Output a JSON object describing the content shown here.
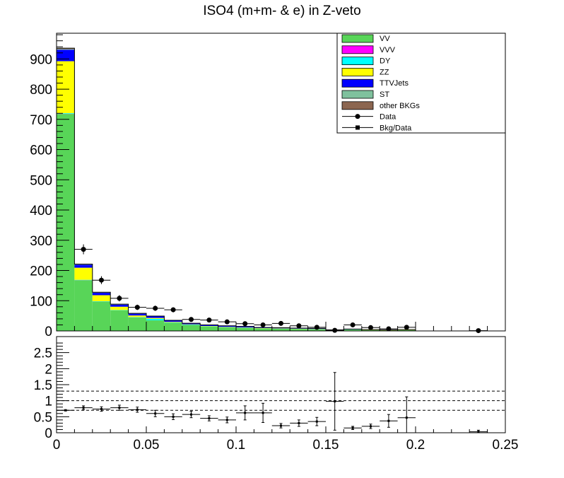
{
  "title": "ISO4 (m+m- & e) in Z-veto",
  "chart_data": [
    {
      "type": "bar",
      "panel": "main",
      "stacked": true,
      "title": "ISO4 (m+m- & e) in Z-veto",
      "x_bin_width": 0.01,
      "x_bin_starts": [
        0.0,
        0.01,
        0.02,
        0.03,
        0.04,
        0.05,
        0.06,
        0.07,
        0.08,
        0.09,
        0.1,
        0.11,
        0.12,
        0.13,
        0.14,
        0.15,
        0.16,
        0.17,
        0.18,
        0.19,
        0.2,
        0.21,
        0.22,
        0.23,
        0.24
      ],
      "xlim": [
        0,
        0.25
      ],
      "ylim": [
        0,
        985
      ],
      "x_ticks": [
        "0",
        "0.05",
        "0.1",
        "0.15",
        "0.2",
        "0.25"
      ],
      "y_ticks": [
        "0",
        "100",
        "200",
        "300",
        "400",
        "500",
        "600",
        "700",
        "800",
        "900"
      ],
      "series": [
        {
          "name": "VV",
          "color": "#58d558",
          "values": [
            718,
            168,
            97,
            68,
            45,
            35,
            27,
            20,
            15,
            12,
            10,
            8,
            7,
            6,
            5,
            2,
            4,
            3,
            2,
            3,
            0,
            0,
            0,
            0,
            0
          ]
        },
        {
          "name": "VVV",
          "color": "#ff00ff",
          "values": [
            0.5,
            0.2,
            0.2,
            0.1,
            0.1,
            0,
            0,
            0,
            0,
            0,
            0,
            0,
            0,
            0,
            0,
            0,
            0,
            0,
            0,
            0,
            0,
            0,
            0,
            0,
            0
          ]
        },
        {
          "name": "DY",
          "color": "#00ffff",
          "values": [
            2,
            1,
            1,
            1,
            1,
            5,
            1,
            1,
            0.5,
            0.5,
            0.5,
            0.5,
            0.5,
            0.5,
            0.5,
            0,
            0.5,
            0,
            0,
            0,
            0,
            0,
            0,
            0,
            0
          ]
        },
        {
          "name": "ZZ",
          "color": "#ffff00",
          "values": [
            172,
            40,
            20,
            11,
            5,
            3,
            2,
            1,
            1,
            1,
            1,
            1,
            1,
            1,
            1,
            0.5,
            0.5,
            0.5,
            0.5,
            0.5,
            0,
            0,
            0,
            0,
            0
          ]
        },
        {
          "name": "TTVJets",
          "color": "#0000ff",
          "values": [
            38,
            10,
            8,
            7,
            6,
            5,
            4,
            3,
            3,
            3,
            3,
            2,
            2,
            2,
            2,
            1,
            1,
            1,
            1,
            1,
            0,
            0,
            0,
            0,
            0
          ]
        },
        {
          "name": "ST",
          "color": "#7fc19d",
          "values": [
            2,
            1,
            1,
            0.5,
            0.5,
            0.5,
            0.5,
            0,
            0,
            0,
            0,
            0,
            0,
            0,
            0,
            0,
            0,
            0,
            0,
            0,
            0,
            0,
            0,
            0,
            0
          ]
        },
        {
          "name": "other BKGs",
          "color": "#8c6650",
          "values": [
            3,
            1,
            1,
            1,
            0.5,
            0.5,
            0.5,
            0.5,
            0.5,
            0.5,
            0.5,
            0,
            0,
            0,
            0,
            0,
            0,
            0,
            0,
            0,
            0,
            0,
            0,
            0,
            0
          ]
        }
      ],
      "data_points": {
        "name": "Data",
        "x": [
          0.015,
          0.025,
          0.035,
          0.045,
          0.055,
          0.065,
          0.075,
          0.085,
          0.095,
          0.105,
          0.115,
          0.125,
          0.135,
          0.145,
          0.155,
          0.165,
          0.175,
          0.185,
          0.195,
          0.235
        ],
        "y": [
          270,
          168,
          108,
          78,
          75,
          70,
          38,
          36,
          30,
          24,
          20,
          25,
          17,
          12,
          2,
          20,
          11,
          7,
          12,
          1
        ]
      },
      "legend": {
        "position": "top-right",
        "entries": [
          "VV",
          "VVV",
          "DY",
          "ZZ",
          "TTVJets",
          "ST",
          "other BKGs",
          "Data",
          "Bkg/Data"
        ]
      }
    },
    {
      "type": "scatter",
      "panel": "ratio",
      "name": "Bkg/Data",
      "xlim": [
        0,
        0.25
      ],
      "ylim": [
        0,
        3
      ],
      "x_ticks": [
        "0",
        "0.05",
        "0.1",
        "0.15",
        "0.2",
        "0.25"
      ],
      "y_ticks": [
        "0",
        "0.5",
        "1",
        "1.5",
        "2",
        "2.5"
      ],
      "reference_lines": [
        0.7,
        1.0,
        1.3
      ],
      "x": [
        0.005,
        0.015,
        0.025,
        0.035,
        0.045,
        0.055,
        0.065,
        0.075,
        0.085,
        0.095,
        0.105,
        0.115,
        0.125,
        0.135,
        0.145,
        0.155,
        0.165,
        0.175,
        0.185,
        0.195,
        0.235
      ],
      "y": [
        0.7,
        0.78,
        0.74,
        0.78,
        0.72,
        0.6,
        0.5,
        0.57,
        0.45,
        0.4,
        0.62,
        0.62,
        0.22,
        0.3,
        0.35,
        0.98,
        0.15,
        0.2,
        0.37,
        0.47,
        0.03
      ],
      "y_err": [
        0.02,
        0.06,
        0.07,
        0.08,
        0.08,
        0.1,
        0.09,
        0.1,
        0.08,
        0.09,
        0.22,
        0.3,
        0.07,
        0.1,
        0.13,
        0.9,
        0.05,
        0.07,
        0.2,
        0.65,
        0.05
      ]
    }
  ]
}
